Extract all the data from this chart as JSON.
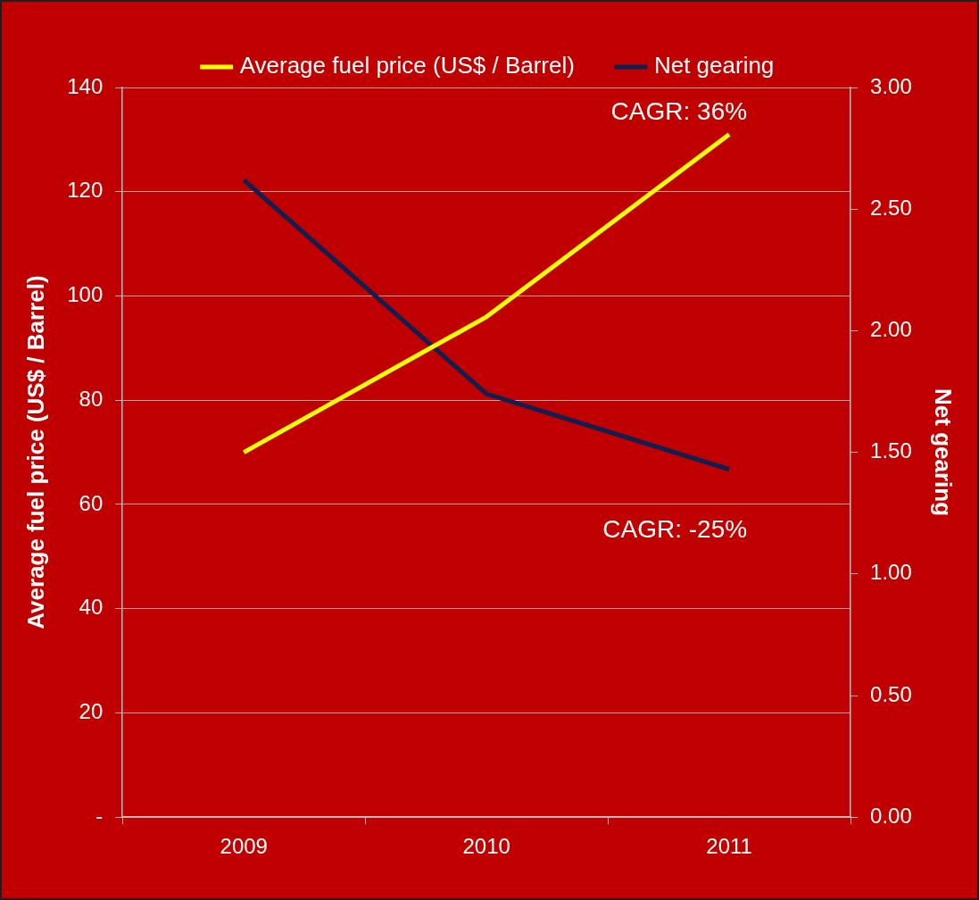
{
  "chart_data": {
    "type": "line",
    "categories": [
      "2009",
      "2010",
      "2011"
    ],
    "series": [
      {
        "name": "Average fuel price (US$ / Barrel)",
        "color": "#ffff00",
        "values": [
          70,
          96,
          131
        ]
      },
      {
        "name": "Net gearing",
        "color": "#0f1f4f",
        "values": [
          2.62,
          1.74,
          1.43
        ],
        "axis": "y2"
      }
    ],
    "ylabel": "Average fuel price (US$ / Barrel)",
    "y2label": "Net gearing",
    "ylim": [
      0,
      140
    ],
    "yticks": [
      {
        "value": 0,
        "label": "-"
      },
      20,
      40,
      60,
      80,
      100,
      120,
      140
    ],
    "y2lim": [
      0,
      3
    ],
    "y2ticks": [
      {
        "value": 0,
        "label": "0.00"
      },
      {
        "value": 0.5,
        "label": "0.50"
      },
      {
        "value": 1,
        "label": "1.00"
      },
      {
        "value": 1.5,
        "label": "1.50"
      },
      {
        "value": 2,
        "label": "2.00"
      },
      {
        "value": 2.5,
        "label": "2.50"
      },
      {
        "value": 3,
        "label": "3.00"
      }
    ],
    "annotations": [
      "CAGR: 36%",
      "CAGR: -25%"
    ],
    "grid": "y",
    "legend": "top",
    "marker": "none",
    "line_style": "solid"
  }
}
